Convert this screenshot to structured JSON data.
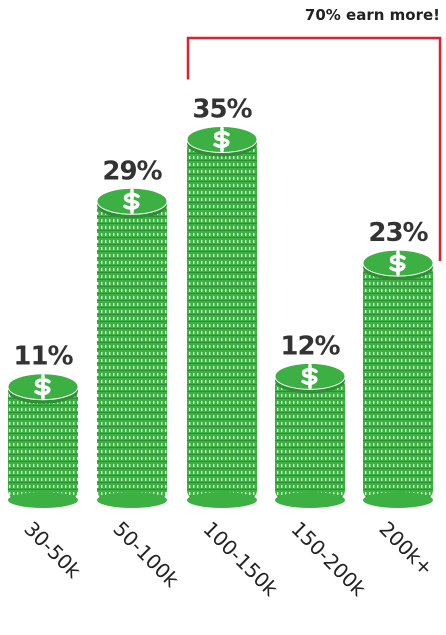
{
  "chart_data": {
    "type": "bar",
    "categories": [
      "30-50k",
      "50-100k",
      "100-150k",
      "150-200k",
      "200k+"
    ],
    "values": [
      11,
      29,
      35,
      12,
      23
    ],
    "value_labels": [
      "11%",
      "29%",
      "35%",
      "12%",
      "23%"
    ],
    "color": "#3db043",
    "annotation": "70% earn more!",
    "annotation_color": "#d9232e"
  }
}
